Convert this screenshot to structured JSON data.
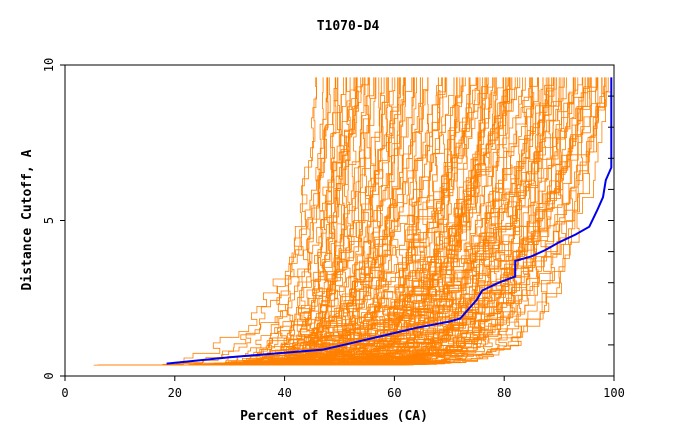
{
  "chart_data": {
    "type": "line",
    "title": "T1070-D4",
    "xlabel": "Percent of Residues (CA)",
    "ylabel": "Distance Cutoff, A",
    "xlim": [
      0,
      100
    ],
    "ylim": [
      0,
      10
    ],
    "x_ticks": [
      0,
      20,
      40,
      60,
      80,
      100
    ],
    "y_ticks": [
      0,
      5,
      10
    ],
    "grid": false,
    "legend": "none",
    "colors": {
      "highlight": "#0000ee",
      "others": "#ff8000",
      "axes": "#000000"
    },
    "highlight_series": {
      "points": [
        [
          18.5,
          0.4
        ],
        [
          30,
          0.6
        ],
        [
          40,
          0.75
        ],
        [
          47,
          0.85
        ],
        [
          52,
          1.05
        ],
        [
          58,
          1.3
        ],
        [
          64,
          1.55
        ],
        [
          70,
          1.75
        ],
        [
          72,
          1.85
        ],
        [
          73.5,
          2.15
        ],
        [
          75,
          2.45
        ],
        [
          76,
          2.75
        ],
        [
          79,
          3.0
        ],
        [
          82,
          3.2
        ],
        [
          82,
          3.7
        ],
        [
          85,
          3.85
        ],
        [
          87.5,
          4.05
        ],
        [
          90,
          4.3
        ],
        [
          93,
          4.55
        ],
        [
          95.5,
          4.8
        ],
        [
          97,
          5.35
        ],
        [
          98,
          5.75
        ],
        [
          98.5,
          6.3
        ],
        [
          99.5,
          6.7
        ],
        [
          99.5,
          7.5
        ],
        [
          99.5,
          8.5
        ],
        [
          99.5,
          9.6
        ]
      ]
    },
    "background_series_count": 160
  }
}
